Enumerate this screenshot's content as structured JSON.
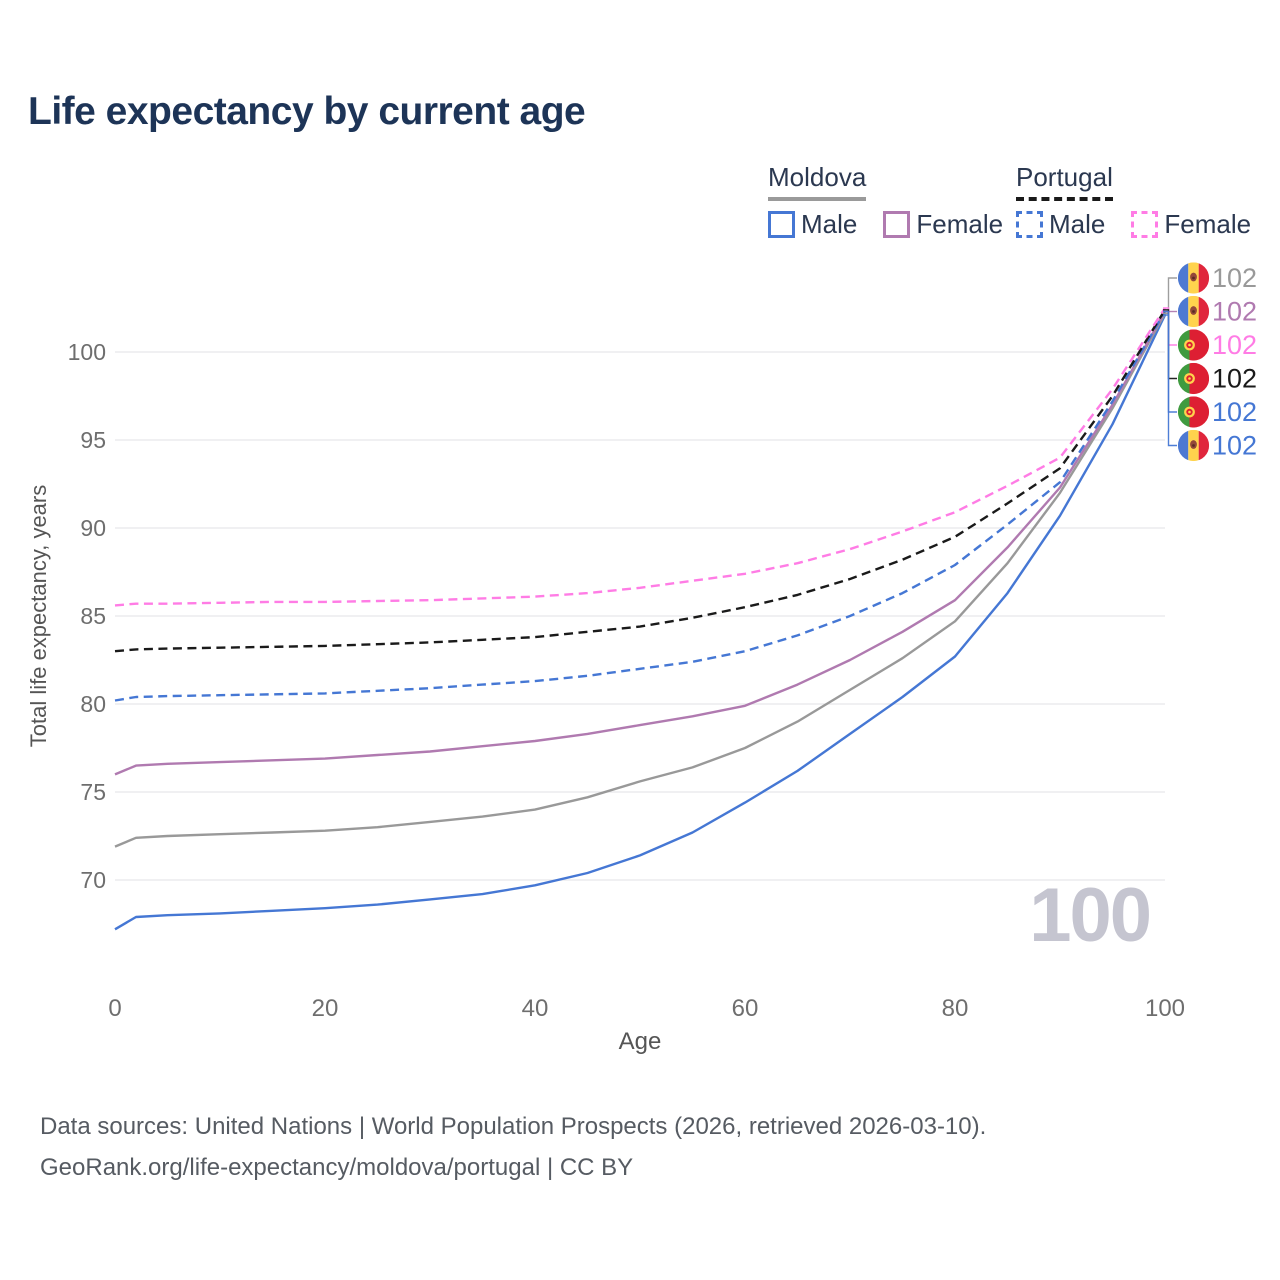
{
  "title": "Life expectancy by current age",
  "legend": {
    "groups": [
      {
        "label": "Moldova",
        "line_style": "solid",
        "underline_color": "#9a9a9a",
        "items": [
          {
            "label": "Male",
            "color": "#4577d4"
          },
          {
            "label": "Female",
            "color": "#b07ab0"
          }
        ]
      },
      {
        "label": "Portugal",
        "line_style": "dashed",
        "underline_color": "#1a1a1a",
        "items": [
          {
            "label": "Male",
            "color": "#4577d4"
          },
          {
            "label": "Female",
            "color": "#ff7ce5"
          }
        ]
      }
    ]
  },
  "chart_data": {
    "type": "line",
    "title": "Life expectancy by current age",
    "xlabel": "Age",
    "ylabel": "Total life expectancy, years",
    "x_ticks": [
      0,
      20,
      40,
      60,
      80,
      100
    ],
    "y_ticks": [
      70,
      75,
      80,
      85,
      90,
      95,
      100
    ],
    "xlim": [
      0,
      100
    ],
    "ylim": [
      66.5,
      103
    ],
    "grid": "horizontal",
    "legend_position": "top-right",
    "age_counter": "100",
    "ages": [
      0,
      2,
      5,
      10,
      15,
      20,
      25,
      30,
      35,
      40,
      45,
      50,
      55,
      60,
      65,
      70,
      75,
      80,
      85,
      90,
      95,
      100
    ],
    "series": [
      {
        "key": "moldova-male",
        "name": "Moldova Male",
        "color": "#4577d4",
        "dash": false,
        "values": [
          67.2,
          67.9,
          68.0,
          68.1,
          68.25,
          68.4,
          68.6,
          68.9,
          69.2,
          69.7,
          70.4,
          71.4,
          72.7,
          74.4,
          76.2,
          78.3,
          80.4,
          82.7,
          86.3,
          90.7,
          95.9,
          102.1
        ]
      },
      {
        "key": "moldova-total",
        "name": "Moldova Total",
        "color": "#999999",
        "dash": false,
        "values": [
          71.9,
          72.4,
          72.5,
          72.6,
          72.7,
          72.8,
          73.0,
          73.3,
          73.6,
          74.0,
          74.7,
          75.6,
          76.4,
          77.5,
          79.0,
          80.8,
          82.6,
          84.7,
          88.0,
          92.0,
          96.8,
          102.2
        ]
      },
      {
        "key": "moldova-female",
        "name": "Moldova Female",
        "color": "#b07ab0",
        "dash": false,
        "values": [
          76.0,
          76.5,
          76.6,
          76.7,
          76.8,
          76.9,
          77.1,
          77.3,
          77.6,
          77.9,
          78.3,
          78.8,
          79.3,
          79.9,
          81.1,
          82.5,
          84.1,
          85.9,
          88.9,
          92.3,
          97.0,
          102.3
        ]
      },
      {
        "key": "portugal-male",
        "name": "Portugal Male",
        "color": "#4577d4",
        "dash": true,
        "values": [
          80.2,
          80.4,
          80.45,
          80.5,
          80.55,
          80.6,
          80.75,
          80.9,
          81.1,
          81.3,
          81.6,
          82.0,
          82.4,
          83.0,
          83.9,
          85.0,
          86.3,
          87.9,
          90.2,
          92.6,
          97.2,
          102.3
        ]
      },
      {
        "key": "portugal-total",
        "name": "Portugal Total",
        "color": "#1a1a1a",
        "dash": true,
        "values": [
          83.0,
          83.1,
          83.15,
          83.2,
          83.25,
          83.3,
          83.4,
          83.5,
          83.65,
          83.8,
          84.1,
          84.4,
          84.9,
          85.5,
          86.2,
          87.1,
          88.2,
          89.5,
          91.4,
          93.4,
          97.5,
          102.4
        ]
      },
      {
        "key": "portugal-female",
        "name": "Portugal Female",
        "color": "#ff7ce5",
        "dash": true,
        "values": [
          85.6,
          85.7,
          85.7,
          85.75,
          85.8,
          85.8,
          85.85,
          85.9,
          86.0,
          86.1,
          86.3,
          86.6,
          87.0,
          87.4,
          88.0,
          88.8,
          89.8,
          90.9,
          92.4,
          94.0,
          97.9,
          102.5
        ]
      }
    ],
    "end_labels": [
      {
        "series": "moldova-total",
        "flag": "moldova",
        "value": "102",
        "color": "#999999"
      },
      {
        "series": "moldova-female",
        "flag": "moldova",
        "value": "102",
        "color": "#b07ab0"
      },
      {
        "series": "portugal-female",
        "flag": "portugal",
        "value": "102",
        "color": "#ff7ce5"
      },
      {
        "series": "portugal-total",
        "flag": "portugal",
        "value": "102",
        "color": "#1a1a1a"
      },
      {
        "series": "portugal-male",
        "flag": "portugal",
        "value": "102",
        "color": "#4577d4"
      },
      {
        "series": "moldova-male",
        "flag": "moldova",
        "value": "102",
        "color": "#4577d4"
      }
    ]
  },
  "footer": {
    "line1": "Data sources: United Nations | World Population Prospects (2026, retrieved 2026-03-10).",
    "line2": "GeoRank.org/life-expectancy/moldova/portugal | CC BY"
  },
  "colors": {
    "title": "#1d3457",
    "tick": "#6e6e6e",
    "axis_label": "#555555",
    "grid": "#e7e7ea",
    "watermark": "#c5c5d0",
    "footer": "#565b62",
    "flag_moldova": [
      "#4d79d2",
      "#ffd34d",
      "#e0263c"
    ],
    "flag_portugal": [
      "#3f9b3f",
      "#dd1f33",
      "#ffd34d"
    ]
  }
}
